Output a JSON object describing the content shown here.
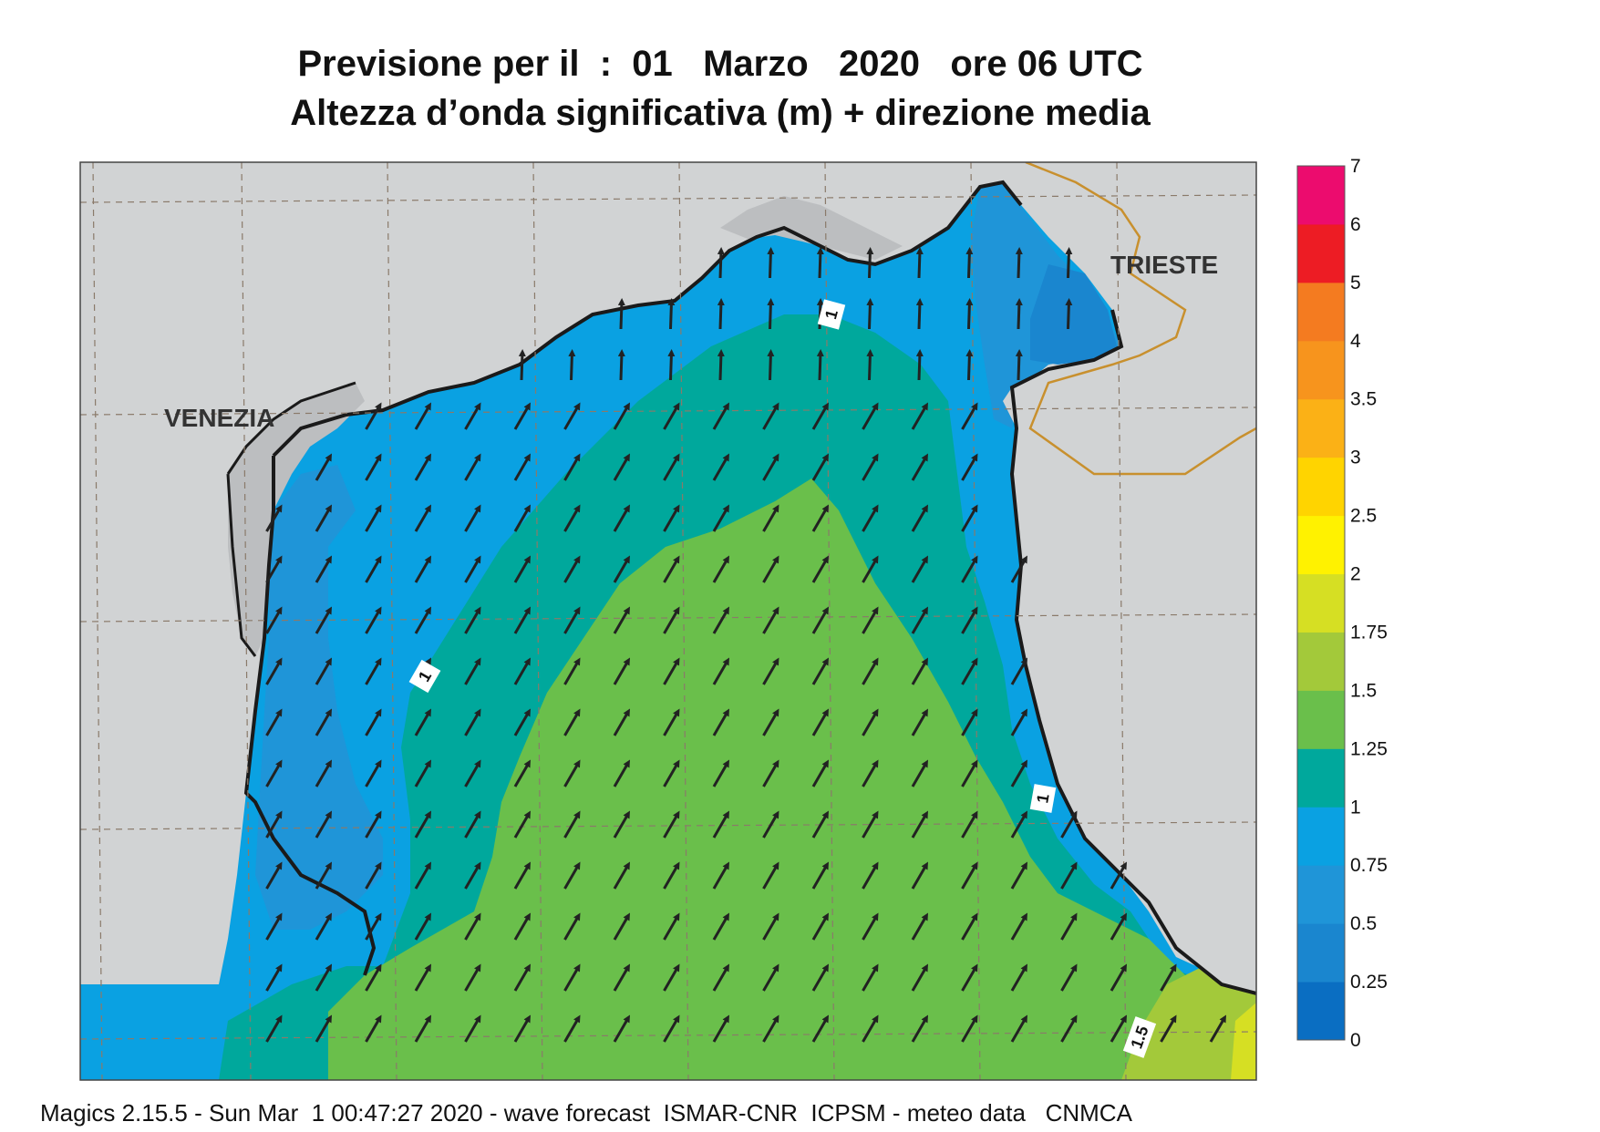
{
  "title_line1": "Previsione per il  :  01   Marzo   2020   ore 06 UTC",
  "title_line2": "Altezza d’onda significativa (m) + direzione media",
  "footer": "Magics 2.15.5 - Sun Mar  1 00:47:27 2020 - wave forecast  ISMAR-CNR  ICPSM - meteo data   CNMCA",
  "cities": [
    {
      "name": "VENEZIA"
    },
    {
      "name": "TRIESTE"
    }
  ],
  "contour_labels": [
    "1",
    "1",
    "1",
    "1.5"
  ],
  "colorbar": {
    "ticks": [
      "0",
      "0.25",
      "0.5",
      "0.75",
      "1",
      "1.25",
      "1.5",
      "1.75",
      "2",
      "2.5",
      "3",
      "3.5",
      "4",
      "5",
      "6",
      "7"
    ],
    "colors": [
      "#0a6ec2",
      "#1a86cf",
      "#1f95d8",
      "#0aa1e2",
      "#00a89c",
      "#6abf4b",
      "#a3c93a",
      "#d6df23",
      "#fff200",
      "#ffd400",
      "#fbb116",
      "#f7941d",
      "#f47b20",
      "#ed1c24",
      "#ec0c6e"
    ]
  },
  "map_colors": {
    "land": "#d1d3d4",
    "lagoon": "#bcbec0",
    "coast": "#1a1a1a",
    "border": "#c8902e",
    "arrow": "#222222"
  }
}
